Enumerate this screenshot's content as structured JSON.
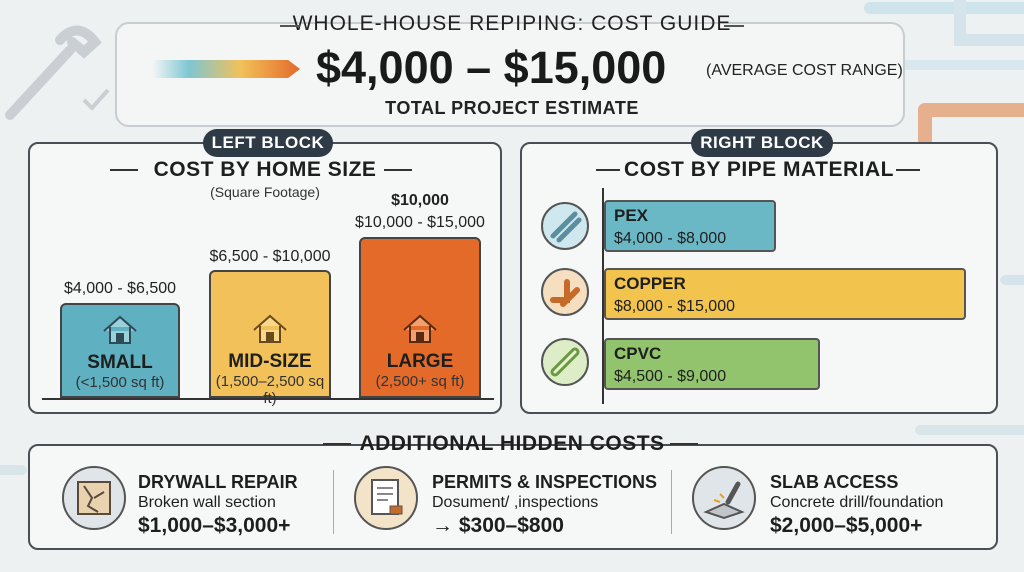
{
  "header": {
    "title": "WHOLE-HOUSE REPIPING: COST GUIDE",
    "range": "$4,000 – $15,000",
    "range_note": "(AVERAGE COST RANGE)",
    "subtitle": "TOTAL PROJECT ESTIMATE"
  },
  "left_block": {
    "tag": "LEFT BLOCK",
    "title": "COST BY HOME SIZE",
    "subtitle": "(Square Footage)",
    "bars": [
      {
        "label": "SMALL",
        "sub": "(<1,500 sq ft)",
        "range": "$4,000 - $6,500",
        "color": "#5fb0c0"
      },
      {
        "label": "MID-SIZE",
        "sub": "(1,500–2,500 sq ft)",
        "range": "$6,500 - $10,000",
        "color": "#f2c15a"
      },
      {
        "label": "LARGE",
        "sub": "(2,500+ sq ft)",
        "range_top": "$10,000",
        "range": "$10,000 - $15,000",
        "color": "#e46a2a"
      }
    ]
  },
  "right_block": {
    "tag": "RIGHT BLOCK",
    "title": "COST BY PIPE MATERIAL",
    "bars": [
      {
        "label": "PEX",
        "range": "$4,000 - $8,000",
        "color": "#6ab8c6"
      },
      {
        "label": "COPPER",
        "range": "$8,000 - $15,000",
        "color": "#f2c44e"
      },
      {
        "label": "CPVC",
        "range": "$4,500 - $9,000",
        "color": "#92c46e"
      }
    ]
  },
  "hidden": {
    "title": "ADDITIONAL HIDDEN COSTS",
    "items": [
      {
        "title": "DRYWALL REPAIR",
        "desc": "Broken wall section",
        "value": "$1,000–$3,000+"
      },
      {
        "title": "PERMITS & INSPECTIONS",
        "desc": "Dosument/ ,inspections",
        "value": "→ $300–$800"
      },
      {
        "title": "SLAB ACCESS",
        "desc": "Concrete drill/foundation",
        "value": "$2,000–$5,000+"
      }
    ]
  }
}
